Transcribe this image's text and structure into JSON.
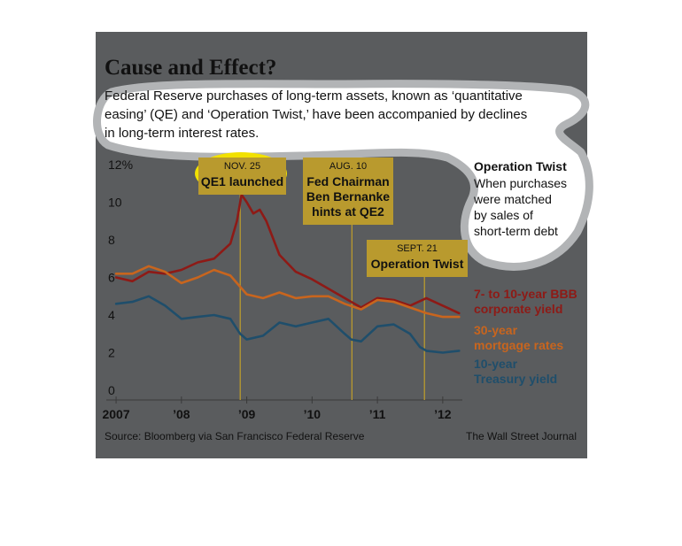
{
  "figure": {
    "title": "Cause and Effect?",
    "subtitle_lines": [
      "Federal Reserve purchases of long-term assets, known as ‘quantitative",
      "easing’ (QE) and ‘Operation Twist,’ have been accompanied by declines",
      "in long-term interest rates."
    ],
    "source": "Source: Bloomberg via San Francisco Federal Reserve",
    "credit": "The Wall Street Journal"
  },
  "colors": {
    "panel": "#5a5c5e",
    "bbb": "#8e1a16",
    "mortgage": "#c8651e",
    "treasury": "#1f4e6b",
    "event_box": "#b99a2e",
    "event_line": "#b99a2e",
    "highlight": "#f2e100"
  },
  "chart_data": {
    "type": "line",
    "title": "Cause and Effect?",
    "xlabel": "",
    "ylabel": "",
    "xlim": [
      2006.85,
      2012.3
    ],
    "ylim": [
      0,
      12
    ],
    "y_ticks": [
      0,
      2,
      4,
      6,
      8,
      10,
      12
    ],
    "y_tick_labels": [
      "0",
      "2",
      "4",
      "6",
      "8",
      "10",
      "12%"
    ],
    "x_ticks": [
      2007,
      2008,
      2009,
      2010,
      2011,
      2012
    ],
    "x_tick_labels": [
      "2007",
      "’08",
      "’09",
      "’10",
      "’11",
      "’12"
    ],
    "grid": false,
    "legend_position": "right",
    "events": [
      {
        "x": 2008.9,
        "date": "NOV. 25",
        "label_lines": [
          "QE1 launched"
        ]
      },
      {
        "x": 2010.61,
        "date": "AUG. 10",
        "label_lines": [
          "Fed Chairman",
          "Ben Bernanke",
          "hints at QE2"
        ]
      },
      {
        "x": 2011.72,
        "date": "SEPT. 21",
        "label_lines": [
          "Operation Twist"
        ]
      }
    ],
    "note": {
      "title": "Operation Twist",
      "lines": [
        "When purchases",
        "were matched",
        "by sales of",
        "short-term debt"
      ]
    },
    "series": [
      {
        "name": "7- to 10-year BBB corporate yield",
        "label_lines": [
          "7- to 10-year BBB",
          "corporate yield"
        ],
        "color_key": "bbb",
        "x": [
          2007.0,
          2007.25,
          2007.5,
          2007.75,
          2008.0,
          2008.25,
          2008.5,
          2008.75,
          2008.85,
          2008.92,
          2009.0,
          2009.1,
          2009.2,
          2009.3,
          2009.5,
          2009.75,
          2010.0,
          2010.25,
          2010.5,
          2010.75,
          2011.0,
          2011.25,
          2011.5,
          2011.75,
          2012.0,
          2012.25
        ],
        "y": [
          6.0,
          5.8,
          6.3,
          6.2,
          6.4,
          6.8,
          7.0,
          7.8,
          9.0,
          10.4,
          10.0,
          9.4,
          9.6,
          9.0,
          7.2,
          6.3,
          5.9,
          5.4,
          4.9,
          4.4,
          4.9,
          4.8,
          4.5,
          4.9,
          4.5,
          4.1
        ]
      },
      {
        "name": "30-year mortgage rates",
        "label_lines": [
          "30-year",
          "mortgage rates"
        ],
        "color_key": "mortgage",
        "x": [
          2007.0,
          2007.25,
          2007.5,
          2007.75,
          2008.0,
          2008.25,
          2008.5,
          2008.75,
          2008.9,
          2009.0,
          2009.25,
          2009.5,
          2009.75,
          2010.0,
          2010.25,
          2010.5,
          2010.75,
          2011.0,
          2011.25,
          2011.5,
          2011.75,
          2012.0,
          2012.25
        ],
        "y": [
          6.2,
          6.2,
          6.6,
          6.3,
          5.7,
          6.0,
          6.4,
          6.1,
          5.5,
          5.1,
          4.9,
          5.2,
          4.9,
          5.0,
          5.0,
          4.6,
          4.3,
          4.8,
          4.7,
          4.4,
          4.1,
          3.9,
          3.9
        ]
      },
      {
        "name": "10-year Treasury yield",
        "label_lines": [
          "10-year",
          "Treasury yield"
        ],
        "color_key": "treasury",
        "x": [
          2007.0,
          2007.25,
          2007.5,
          2007.75,
          2008.0,
          2008.25,
          2008.5,
          2008.75,
          2008.9,
          2009.0,
          2009.25,
          2009.5,
          2009.75,
          2010.0,
          2010.25,
          2010.5,
          2010.6,
          2010.75,
          2011.0,
          2011.25,
          2011.5,
          2011.65,
          2011.75,
          2012.0,
          2012.25
        ],
        "y": [
          4.6,
          4.7,
          5.0,
          4.5,
          3.8,
          3.9,
          4.0,
          3.8,
          3.0,
          2.7,
          2.9,
          3.6,
          3.4,
          3.6,
          3.8,
          3.0,
          2.7,
          2.6,
          3.4,
          3.5,
          3.0,
          2.3,
          2.1,
          2.0,
          2.1
        ]
      }
    ]
  }
}
